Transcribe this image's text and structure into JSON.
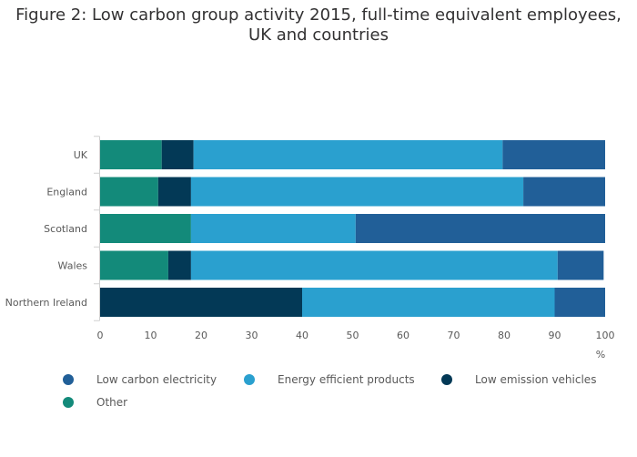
{
  "title_line1": "Figure 2: Low carbon group activity 2015, full-time equivalent employees,",
  "title_line2": "UK and countries",
  "chart_data": {
    "type": "bar",
    "orientation": "horizontal",
    "stacked": true,
    "title": "Figure 2: Low carbon group activity 2015, full-time equivalent employees, UK and countries",
    "unit": "%",
    "categories": [
      "UK",
      "England",
      "Scotland",
      "Wales",
      "Northern Ireland"
    ],
    "xlim": [
      0,
      100
    ],
    "xticks": [
      0,
      10,
      20,
      30,
      40,
      50,
      60,
      70,
      80,
      90,
      100
    ],
    "series": [
      {
        "name": "Other",
        "color": "#138a7a",
        "values": [
          12.2,
          11.5,
          18.0,
          13.5,
          0.0
        ]
      },
      {
        "name": "Low emission vehicles",
        "color": "#033956",
        "values": [
          6.3,
          6.5,
          0.0,
          4.5,
          40.0
        ]
      },
      {
        "name": "Energy efficient products",
        "color": "#2aa0cf",
        "values": [
          61.2,
          65.8,
          32.6,
          72.6,
          50.0
        ]
      },
      {
        "name": "Low carbon electricity",
        "color": "#215f98",
        "values": [
          20.3,
          16.2,
          49.4,
          9.1,
          10.0
        ]
      }
    ],
    "legend": [
      {
        "name": "Low carbon electricity",
        "color": "#215f98"
      },
      {
        "name": "Energy efficient products",
        "color": "#2aa0cf"
      },
      {
        "name": "Low emission vehicles",
        "color": "#033956"
      },
      {
        "name": "Other",
        "color": "#138a7a"
      }
    ],
    "legend_position": "bottom",
    "grid": false
  }
}
